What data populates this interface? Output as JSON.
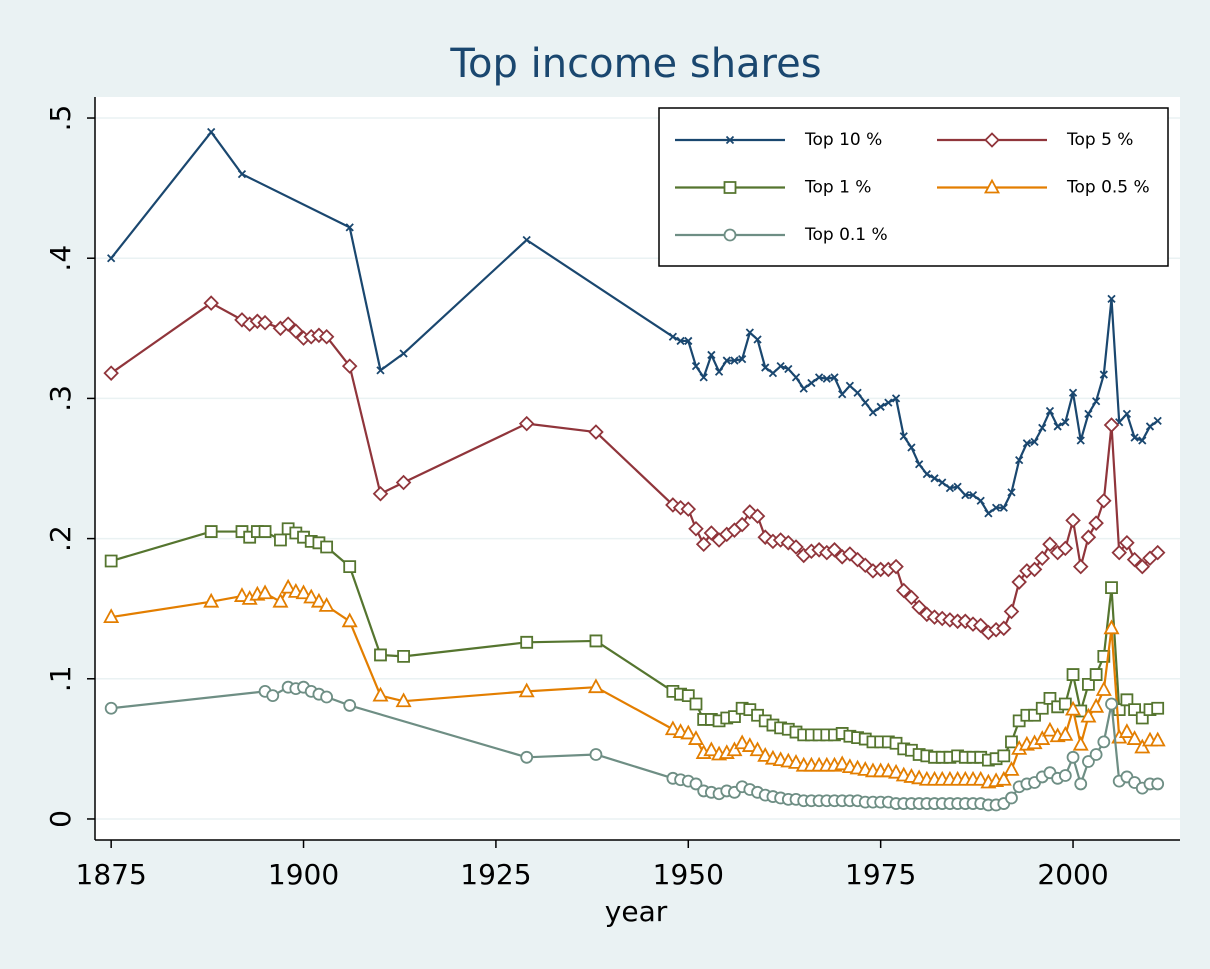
{
  "chart_data": {
    "type": "line",
    "title": "Top income shares",
    "xlabel": "year",
    "xlim": [
      1872.9,
      2013.9
    ],
    "ylim": [
      -0.015,
      0.515
    ],
    "xticks": [
      1875,
      1900,
      1925,
      1950,
      1975,
      2000
    ],
    "yticks": [
      0,
      {
        "value": 0.1,
        "label": ".1"
      },
      {
        "value": 0.2,
        "label": ".2"
      },
      {
        "value": 0.3,
        "label": ".3"
      },
      {
        "value": 0.4,
        "label": ".4"
      },
      {
        "value": 0.5,
        "label": ".5"
      }
    ],
    "grid": true,
    "legend_position": "top-right",
    "series": [
      {
        "name": "Top 10 %",
        "color": "#1a476f",
        "marker": "x",
        "x": [
          1875,
          1888,
          1892,
          1906,
          1910,
          1913,
          1929,
          1948,
          1949,
          1950,
          1951,
          1952,
          1953,
          1954,
          1955,
          1956,
          1957,
          1958,
          1959,
          1960,
          1961,
          1962,
          1963,
          1964,
          1965,
          1966,
          1967,
          1968,
          1969,
          1970,
          1971,
          1972,
          1973,
          1974,
          1975,
          1976,
          1977,
          1978,
          1979,
          1980,
          1981,
          1982,
          1983,
          1984,
          1985,
          1986,
          1987,
          1988,
          1989,
          1990,
          1991,
          1992,
          1993,
          1994,
          1995,
          1996,
          1997,
          1998,
          1999,
          2000,
          2001,
          2002,
          2003,
          2004,
          2005,
          2006,
          2007,
          2008,
          2009,
          2010,
          2011
        ],
        "values": [
          0.4,
          0.49,
          0.46,
          0.422,
          0.32,
          0.332,
          0.413,
          0.344,
          0.341,
          0.341,
          0.323,
          0.315,
          0.331,
          0.319,
          0.327,
          0.327,
          0.328,
          0.347,
          0.342,
          0.322,
          0.318,
          0.323,
          0.321,
          0.315,
          0.307,
          0.311,
          0.315,
          0.314,
          0.315,
          0.303,
          0.309,
          0.304,
          0.297,
          0.29,
          0.294,
          0.297,
          0.3,
          0.273,
          0.265,
          0.253,
          0.246,
          0.243,
          0.24,
          0.236,
          0.237,
          0.231,
          0.231,
          0.227,
          0.218,
          0.222,
          0.222,
          0.233,
          0.256,
          0.268,
          0.269,
          0.279,
          0.291,
          0.28,
          0.283,
          0.304,
          0.27,
          0.289,
          0.298,
          0.317,
          0.371,
          0.283,
          0.289,
          0.272,
          0.27,
          0.28,
          0.284
        ]
      },
      {
        "name": "Top 5 %",
        "color": "#90353b",
        "marker": "diamond",
        "x": [
          1875,
          1888,
          1892,
          1893,
          1894,
          1895,
          1897,
          1898,
          1899,
          1900,
          1901,
          1902,
          1903,
          1906,
          1910,
          1913,
          1929,
          1938,
          1948,
          1949,
          1950,
          1951,
          1952,
          1953,
          1954,
          1955,
          1956,
          1957,
          1958,
          1959,
          1960,
          1961,
          1962,
          1963,
          1964,
          1965,
          1966,
          1967,
          1968,
          1969,
          1970,
          1971,
          1972,
          1973,
          1974,
          1975,
          1976,
          1977,
          1978,
          1979,
          1980,
          1981,
          1982,
          1983,
          1984,
          1985,
          1986,
          1987,
          1988,
          1989,
          1990,
          1991,
          1992,
          1993,
          1994,
          1995,
          1996,
          1997,
          1998,
          1999,
          2000,
          2001,
          2002,
          2003,
          2004,
          2005,
          2006,
          2007,
          2008,
          2009,
          2010,
          2011
        ],
        "values": [
          0.318,
          0.368,
          0.356,
          0.353,
          0.355,
          0.354,
          0.35,
          0.353,
          0.348,
          0.343,
          0.344,
          0.345,
          0.344,
          0.323,
          0.232,
          0.24,
          0.282,
          0.276,
          0.224,
          0.222,
          0.221,
          0.207,
          0.196,
          0.204,
          0.199,
          0.203,
          0.206,
          0.21,
          0.219,
          0.216,
          0.201,
          0.198,
          0.199,
          0.197,
          0.194,
          0.188,
          0.191,
          0.192,
          0.19,
          0.192,
          0.187,
          0.189,
          0.185,
          0.181,
          0.177,
          0.178,
          0.178,
          0.18,
          0.163,
          0.158,
          0.151,
          0.146,
          0.144,
          0.143,
          0.142,
          0.141,
          0.141,
          0.139,
          0.138,
          0.133,
          0.135,
          0.136,
          0.148,
          0.169,
          0.177,
          0.178,
          0.186,
          0.196,
          0.19,
          0.193,
          0.213,
          0.18,
          0.201,
          0.211,
          0.227,
          0.281,
          0.19,
          0.197,
          0.185,
          0.18,
          0.186,
          0.19
        ]
      },
      {
        "name": "Top 1 %",
        "color": "#55752f",
        "marker": "square",
        "x": [
          1875,
          1888,
          1892,
          1893,
          1894,
          1895,
          1897,
          1898,
          1899,
          1900,
          1901,
          1902,
          1903,
          1906,
          1910,
          1913,
          1929,
          1938,
          1948,
          1949,
          1950,
          1951,
          1952,
          1953,
          1954,
          1955,
          1956,
          1957,
          1958,
          1959,
          1960,
          1961,
          1962,
          1963,
          1964,
          1965,
          1966,
          1967,
          1968,
          1969,
          1970,
          1971,
          1972,
          1973,
          1974,
          1975,
          1976,
          1977,
          1978,
          1979,
          1980,
          1981,
          1982,
          1983,
          1984,
          1985,
          1986,
          1987,
          1988,
          1989,
          1990,
          1991,
          1992,
          1993,
          1994,
          1995,
          1996,
          1997,
          1998,
          1999,
          2000,
          2001,
          2002,
          2003,
          2004,
          2005,
          2006,
          2007,
          2008,
          2009,
          2010,
          2011
        ],
        "values": [
          0.184,
          0.205,
          0.205,
          0.201,
          0.205,
          0.205,
          0.199,
          0.207,
          0.204,
          0.201,
          0.198,
          0.197,
          0.194,
          0.18,
          0.117,
          0.116,
          0.126,
          0.127,
          0.091,
          0.089,
          0.088,
          0.082,
          0.071,
          0.071,
          0.07,
          0.072,
          0.073,
          0.079,
          0.078,
          0.074,
          0.07,
          0.067,
          0.065,
          0.064,
          0.062,
          0.06,
          0.06,
          0.06,
          0.06,
          0.06,
          0.061,
          0.059,
          0.058,
          0.057,
          0.055,
          0.055,
          0.055,
          0.054,
          0.05,
          0.049,
          0.046,
          0.045,
          0.044,
          0.044,
          0.044,
          0.045,
          0.044,
          0.044,
          0.044,
          0.042,
          0.043,
          0.045,
          0.055,
          0.07,
          0.074,
          0.074,
          0.079,
          0.086,
          0.08,
          0.082,
          0.103,
          0.077,
          0.096,
          0.103,
          0.116,
          0.165,
          0.078,
          0.085,
          0.078,
          0.072,
          0.078,
          0.079
        ]
      },
      {
        "name": "Top 0.5 %",
        "color": "#e37e00",
        "marker": "triangle",
        "x": [
          1875,
          1888,
          1892,
          1893,
          1894,
          1895,
          1897,
          1898,
          1899,
          1900,
          1901,
          1902,
          1903,
          1906,
          1910,
          1913,
          1929,
          1938,
          1948,
          1949,
          1950,
          1951,
          1952,
          1953,
          1954,
          1955,
          1956,
          1957,
          1958,
          1959,
          1960,
          1961,
          1962,
          1963,
          1964,
          1965,
          1966,
          1967,
          1968,
          1969,
          1970,
          1971,
          1972,
          1973,
          1974,
          1975,
          1976,
          1977,
          1978,
          1979,
          1980,
          1981,
          1982,
          1983,
          1984,
          1985,
          1986,
          1987,
          1988,
          1989,
          1990,
          1991,
          1992,
          1993,
          1994,
          1995,
          1996,
          1997,
          1998,
          1999,
          2000,
          2001,
          2002,
          2003,
          2004,
          2005,
          2006,
          2007,
          2008,
          2009,
          2010,
          2011
        ],
        "values": [
          0.144,
          0.155,
          0.159,
          0.157,
          0.16,
          0.161,
          0.155,
          0.165,
          0.162,
          0.161,
          0.158,
          0.155,
          0.152,
          0.141,
          0.088,
          0.084,
          0.091,
          0.094,
          0.064,
          0.062,
          0.061,
          0.057,
          0.047,
          0.049,
          0.046,
          0.047,
          0.049,
          0.054,
          0.052,
          0.049,
          0.045,
          0.043,
          0.042,
          0.041,
          0.04,
          0.038,
          0.038,
          0.038,
          0.038,
          0.038,
          0.039,
          0.037,
          0.036,
          0.035,
          0.034,
          0.034,
          0.034,
          0.033,
          0.031,
          0.03,
          0.029,
          0.028,
          0.028,
          0.028,
          0.028,
          0.028,
          0.028,
          0.028,
          0.028,
          0.026,
          0.027,
          0.028,
          0.035,
          0.05,
          0.053,
          0.054,
          0.057,
          0.063,
          0.059,
          0.06,
          0.078,
          0.053,
          0.073,
          0.08,
          0.092,
          0.136,
          0.058,
          0.062,
          0.057,
          0.051,
          0.056,
          0.056
        ]
      },
      {
        "name": "Top 0.1 %",
        "color": "#6e8e84",
        "marker": "circle",
        "x": [
          1875,
          1895,
          1896,
          1898,
          1899,
          1900,
          1901,
          1902,
          1903,
          1906,
          1929,
          1938,
          1948,
          1949,
          1950,
          1951,
          1952,
          1953,
          1954,
          1955,
          1956,
          1957,
          1958,
          1959,
          1960,
          1961,
          1962,
          1963,
          1964,
          1965,
          1966,
          1967,
          1968,
          1969,
          1970,
          1971,
          1972,
          1973,
          1974,
          1975,
          1976,
          1977,
          1978,
          1979,
          1980,
          1981,
          1982,
          1983,
          1984,
          1985,
          1986,
          1987,
          1988,
          1989,
          1990,
          1991,
          1992,
          1993,
          1994,
          1995,
          1996,
          1997,
          1998,
          1999,
          2000,
          2001,
          2002,
          2003,
          2004,
          2005,
          2006,
          2007,
          2008,
          2009,
          2010,
          2011
        ],
        "values": [
          0.079,
          0.091,
          0.088,
          0.094,
          0.093,
          0.094,
          0.091,
          0.089,
          0.087,
          0.081,
          0.044,
          0.046,
          0.029,
          0.028,
          0.027,
          0.025,
          0.02,
          0.019,
          0.018,
          0.02,
          0.019,
          0.023,
          0.021,
          0.019,
          0.017,
          0.016,
          0.015,
          0.014,
          0.014,
          0.013,
          0.013,
          0.013,
          0.013,
          0.013,
          0.013,
          0.013,
          0.013,
          0.012,
          0.012,
          0.012,
          0.012,
          0.011,
          0.011,
          0.011,
          0.011,
          0.011,
          0.011,
          0.011,
          0.011,
          0.011,
          0.011,
          0.011,
          0.011,
          0.01,
          0.01,
          0.011,
          0.015,
          0.023,
          0.025,
          0.026,
          0.03,
          0.033,
          0.029,
          0.031,
          0.044,
          0.025,
          0.041,
          0.046,
          0.055,
          0.082,
          0.027,
          0.03,
          0.026,
          0.022,
          0.025,
          0.025
        ]
      }
    ]
  }
}
